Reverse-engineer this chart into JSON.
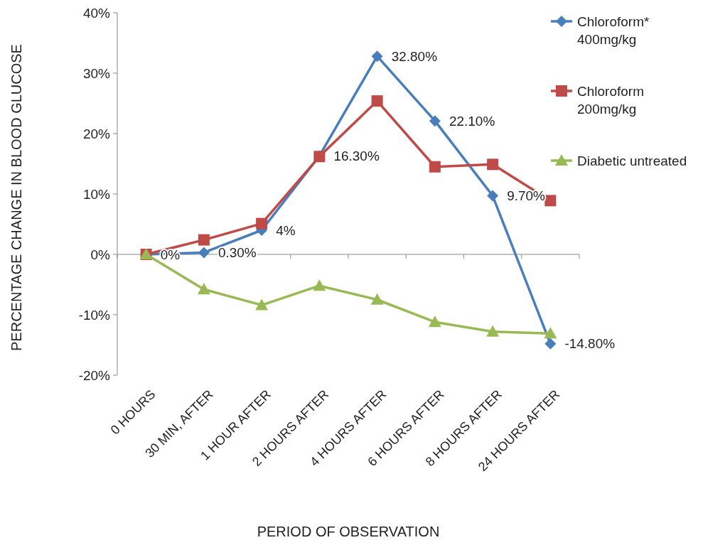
{
  "chart_data": {
    "type": "line",
    "xlabel": "PERIOD OF OBSERVATION",
    "ylabel": "PERCENTAGE CHANGE IN BLOOD GLUCOSE",
    "categories": [
      "0 HOURS",
      "30 MIN, AFTER",
      "1 HOUR AFTER",
      "2 HOURS AFTER",
      "4 HOURS AFTER",
      "6 HOURS AFTER",
      "8 HOURS AFTER",
      "24 HOURS AFTER"
    ],
    "series": [
      {
        "name": "Chloroform* 400mg/kg",
        "color": "#4a7ebb",
        "marker": "diamond",
        "values": [
          0,
          0.3,
          4,
          16.3,
          32.8,
          22.1,
          9.7,
          -14.8
        ],
        "value_labels": [
          "0%",
          "0.30%",
          "4%",
          "16.30%",
          "32.80%",
          "22.10%",
          "9.70%",
          "-14.80%"
        ]
      },
      {
        "name": "Chloroform 200mg/kg",
        "color": "#be4b48",
        "marker": "square",
        "values": [
          0,
          2.4,
          5.1,
          16.2,
          25.4,
          14.5,
          14.9,
          8.9
        ]
      },
      {
        "name": "Diabetic untreated",
        "color": "#98b954",
        "marker": "triangle",
        "values": [
          0,
          -5.8,
          -8.4,
          -5.2,
          -7.5,
          -11.2,
          -12.8,
          -13.1
        ]
      }
    ],
    "ylim": [
      -20,
      40
    ],
    "yticks": [
      {
        "value": -20,
        "label": "-20%"
      },
      {
        "value": -10,
        "label": "-10%"
      },
      {
        "value": 0,
        "label": "0%"
      },
      {
        "value": 10,
        "label": "10%"
      },
      {
        "value": 20,
        "label": "20%"
      },
      {
        "value": 30,
        "label": "30%"
      },
      {
        "value": 40,
        "label": "40%"
      }
    ],
    "legend": "right"
  }
}
